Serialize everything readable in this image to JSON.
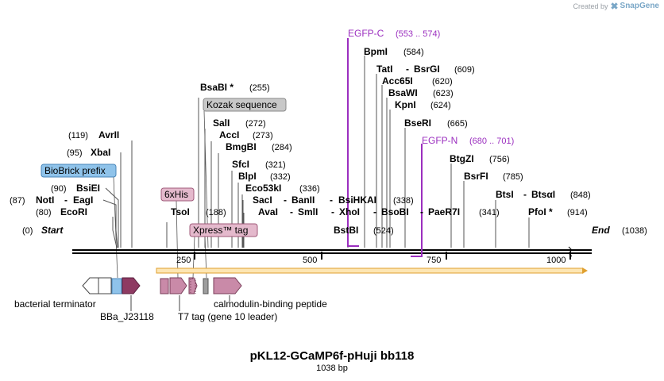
{
  "watermark": {
    "created_by": "Created by",
    "brand": "SnapGene"
  },
  "map": {
    "title": "pKL12-GCaMP6f-pHuji bb118",
    "length_label": "1038 bp",
    "start_label": "Start",
    "start_pos": "(0)",
    "end_label": "End",
    "end_pos": "(1038)",
    "ticks": [
      "250",
      "500",
      "750",
      "1000"
    ]
  },
  "sites": {
    "ecori": {
      "name": "EcoRI",
      "pos": "(80)"
    },
    "noti": {
      "name": "NotI",
      "pos": "(87)"
    },
    "eagi": {
      "name": "EagI"
    },
    "bsiei": {
      "name": "BsiEI",
      "pos": "(90)"
    },
    "xbai": {
      "name": "XbaI",
      "pos": "(95)"
    },
    "avrii": {
      "name": "AvrII",
      "pos": "(119)"
    },
    "tsoi": {
      "name": "TsoI",
      "pos": "(188)"
    },
    "bsabi": {
      "name": "BsaBI *",
      "pos": "(255)"
    },
    "sali": {
      "name": "SalI",
      "pos": "(272)"
    },
    "acci": {
      "name": "AccI",
      "pos": "(273)"
    },
    "bmgbi": {
      "name": "BmgBI",
      "pos": "(284)"
    },
    "sfci": {
      "name": "SfcI",
      "pos": "(321)"
    },
    "blpi": {
      "name": "BlpI",
      "pos": "(332)"
    },
    "eco53ki": {
      "name": "Eco53kI",
      "pos": "(336)"
    },
    "saci": {
      "name": "SacI"
    },
    "banii": {
      "name": "BanII"
    },
    "bsihkai": {
      "name": "BsiHKAI",
      "pos": "(338)"
    },
    "avai": {
      "name": "AvaI"
    },
    "smli": {
      "name": "SmlI"
    },
    "xhoi": {
      "name": "XhoI"
    },
    "bsobi": {
      "name": "BsoBI"
    },
    "paer7i": {
      "name": "PaeR7I",
      "pos": "(341)"
    },
    "bstbi": {
      "name": "BstBI",
      "pos": "(524)"
    },
    "bpmi": {
      "name": "BpmI",
      "pos": "(584)"
    },
    "tati": {
      "name": "TatI"
    },
    "bsrgi": {
      "name": "BsrGI",
      "pos": "(609)"
    },
    "acc65i": {
      "name": "Acc65I",
      "pos": "(620)"
    },
    "bsawi": {
      "name": "BsaWI",
      "pos": "(623)"
    },
    "kpni": {
      "name": "KpnI",
      "pos": "(624)"
    },
    "bseri": {
      "name": "BseRI",
      "pos": "(665)"
    },
    "btgzi": {
      "name": "BtgZI",
      "pos": "(756)"
    },
    "bsrfi": {
      "name": "BsrFI",
      "pos": "(785)"
    },
    "btsi": {
      "name": "BtsI"
    },
    "btsai": {
      "name": "BtsαI",
      "pos": "(848)"
    },
    "pfoi": {
      "name": "PfoI *",
      "pos": "(914)"
    }
  },
  "primers": {
    "egfp_c": {
      "name": "EGFP-C",
      "range": "(553 .. 574)"
    },
    "egfp_n": {
      "name": "EGFP-N",
      "range": "(680 .. 701)"
    }
  },
  "features": {
    "biobrick_prefix": "BioBrick prefix",
    "kozak": "Kozak sequence",
    "sixhis": "6xHis",
    "xpress": "Xpress™ tag",
    "bacterial_terminator": "bacterial terminator",
    "bba_j23118": "BBa_J23118",
    "t7_tag": "T7 tag (gene 10 leader)",
    "calmodulin": "calmodulin-binding peptide"
  },
  "colors": {
    "primer": "#9b2fbf",
    "orf_fill": "#fde6b3",
    "orf_stroke": "#e0a030",
    "pink": "#c98aa8",
    "pink_dark": "#8e3a62",
    "blue": "#8fc3ea",
    "gray_tag": "#c8c8c8"
  }
}
